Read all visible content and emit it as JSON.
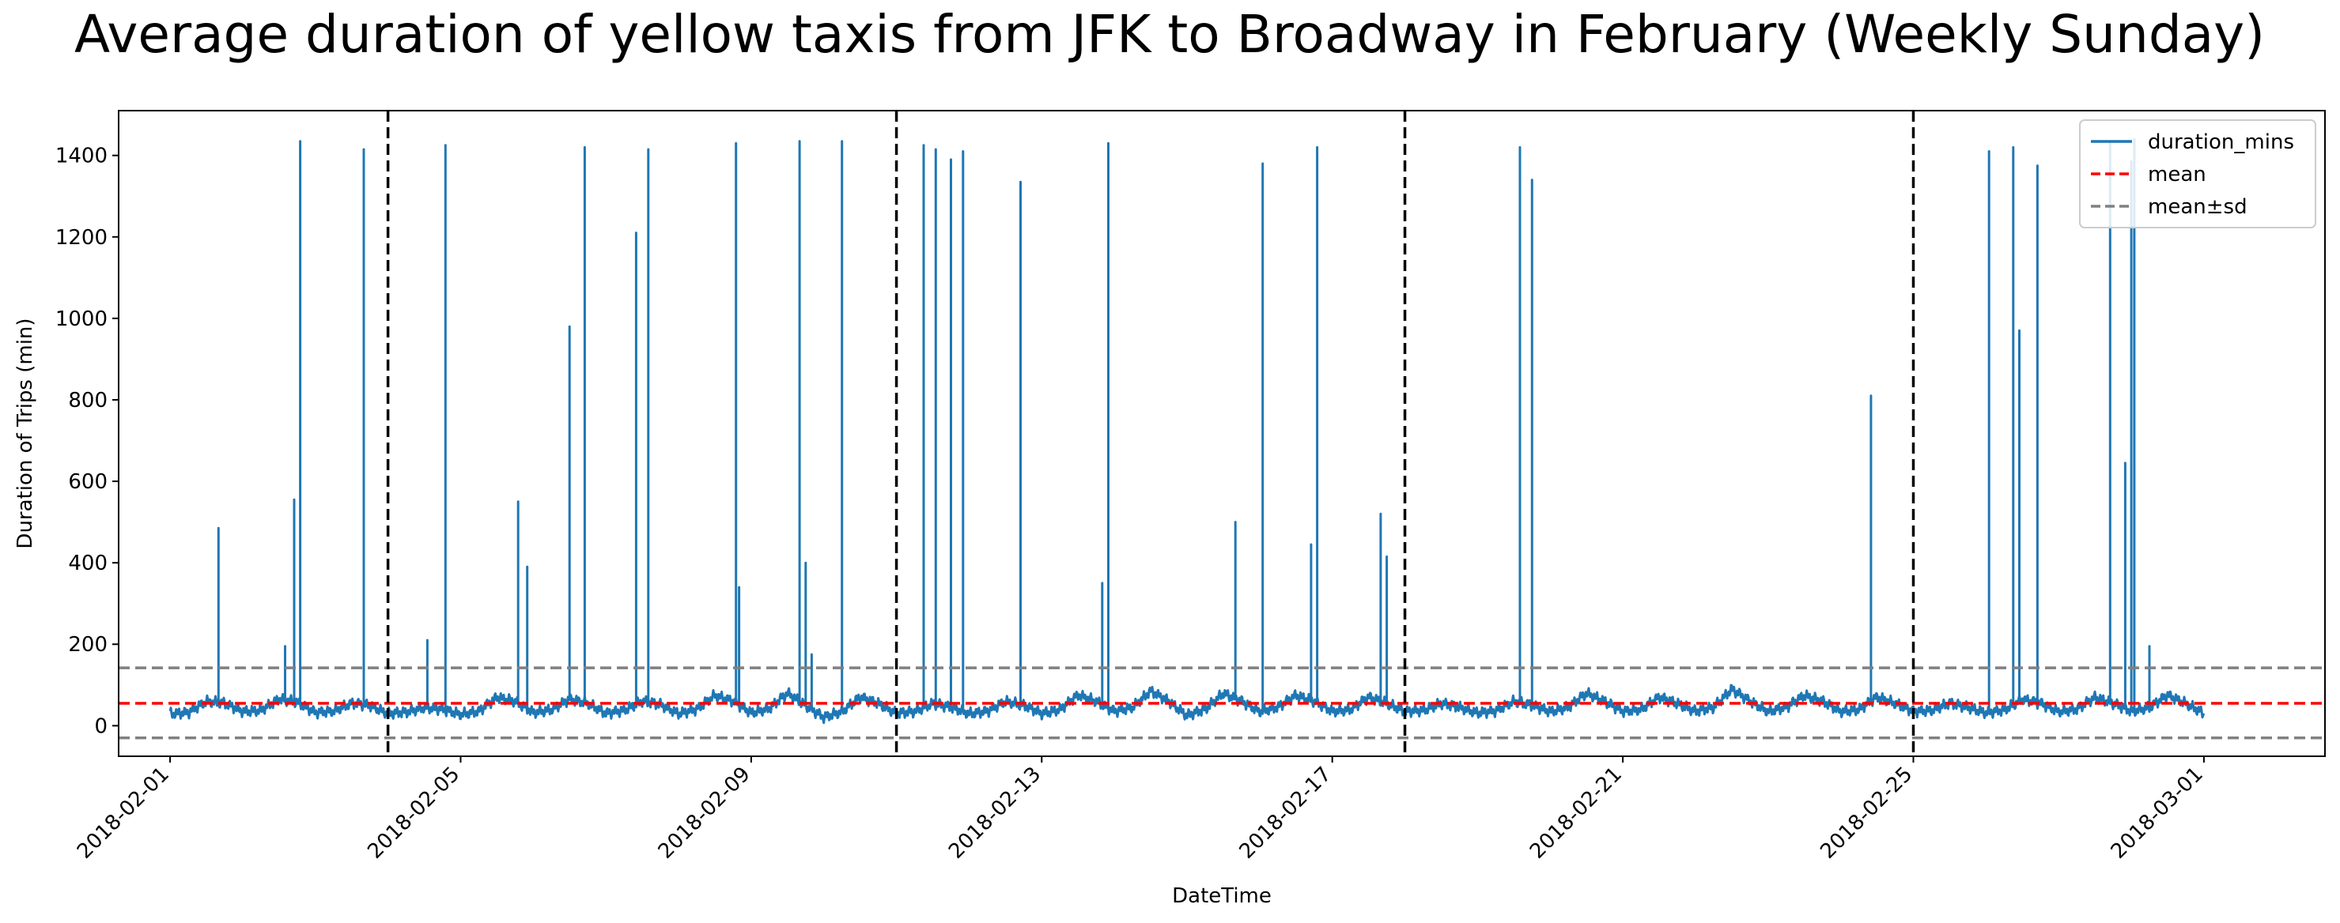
{
  "chart_data": {
    "type": "line",
    "title": "Average duration of yellow taxis from JFK to Broadway in February (Weekly Sunday)",
    "xlabel": "DateTime",
    "ylabel": "Duration of Trips (min)",
    "xlim": [
      "2018-01-31T07:00",
      "2018-03-02T16:00"
    ],
    "ylim": [
      -75,
      1510
    ],
    "xticks": [
      "2018-02-01",
      "2018-02-05",
      "2018-02-09",
      "2018-02-13",
      "2018-02-17",
      "2018-02-21",
      "2018-02-25",
      "2018-03-01"
    ],
    "yticks": [
      0,
      200,
      400,
      600,
      800,
      1000,
      1200,
      1400
    ],
    "grid": false,
    "legend_position": "top-right",
    "legend": [
      "duration_mins",
      "mean",
      "mean±sd"
    ],
    "colors": {
      "series": "#1f77b4",
      "mean": "#ff0000",
      "sd": "#808080",
      "sunday": "#000000"
    },
    "mean": 55,
    "sd_bands": [
      -30,
      142
    ],
    "sunday_lines": [
      "2018-02-04",
      "2018-02-11",
      "2018-02-18",
      "2018-02-25"
    ],
    "series": [
      {
        "name": "duration_mins",
        "baseline": [
          [
            "2018-02-01T00:00",
            30
          ],
          [
            "2018-02-01T06:00",
            32
          ],
          [
            "2018-02-01T12:00",
            60
          ],
          [
            "2018-02-01T18:00",
            55
          ],
          [
            "2018-02-02T00:00",
            35
          ],
          [
            "2018-02-02T06:00",
            38
          ],
          [
            "2018-02-02T12:00",
            65
          ],
          [
            "2018-02-02T18:00",
            58
          ],
          [
            "2018-02-03T00:00",
            32
          ],
          [
            "2018-02-03T06:00",
            36
          ],
          [
            "2018-02-03T12:00",
            55
          ],
          [
            "2018-02-03T18:00",
            50
          ],
          [
            "2018-02-04T00:00",
            30
          ],
          [
            "2018-02-04T06:00",
            33
          ],
          [
            "2018-02-04T12:00",
            45
          ],
          [
            "2018-02-04T18:00",
            40
          ],
          [
            "2018-02-05T00:00",
            28
          ],
          [
            "2018-02-05T06:00",
            35
          ],
          [
            "2018-02-05T12:00",
            70
          ],
          [
            "2018-02-05T18:00",
            60
          ],
          [
            "2018-02-06T00:00",
            32
          ],
          [
            "2018-02-06T06:00",
            40
          ],
          [
            "2018-02-06T12:00",
            65
          ],
          [
            "2018-02-06T18:00",
            55
          ],
          [
            "2018-02-07T00:00",
            30
          ],
          [
            "2018-02-07T06:00",
            38
          ],
          [
            "2018-02-07T12:00",
            60
          ],
          [
            "2018-02-07T18:00",
            52
          ],
          [
            "2018-02-08T00:00",
            30
          ],
          [
            "2018-02-08T06:00",
            40
          ],
          [
            "2018-02-08T12:00",
            75
          ],
          [
            "2018-02-08T18:00",
            60
          ],
          [
            "2018-02-09T00:00",
            32
          ],
          [
            "2018-02-09T06:00",
            42
          ],
          [
            "2018-02-09T12:00",
            80
          ],
          [
            "2018-02-09T18:00",
            50
          ],
          [
            "2018-02-10T00:00",
            20
          ],
          [
            "2018-02-10T06:00",
            35
          ],
          [
            "2018-02-10T12:00",
            70
          ],
          [
            "2018-02-10T18:00",
            55
          ],
          [
            "2018-02-11T00:00",
            30
          ],
          [
            "2018-02-11T06:00",
            35
          ],
          [
            "2018-02-11T12:00",
            55
          ],
          [
            "2018-02-11T18:00",
            45
          ],
          [
            "2018-02-12T00:00",
            30
          ],
          [
            "2018-02-12T06:00",
            35
          ],
          [
            "2018-02-12T12:00",
            60
          ],
          [
            "2018-02-12T18:00",
            50
          ],
          [
            "2018-02-13T00:00",
            30
          ],
          [
            "2018-02-13T06:00",
            40
          ],
          [
            "2018-02-13T12:00",
            75
          ],
          [
            "2018-02-13T18:00",
            60
          ],
          [
            "2018-02-14T00:00",
            35
          ],
          [
            "2018-02-14T06:00",
            45
          ],
          [
            "2018-02-14T12:00",
            85
          ],
          [
            "2018-02-14T18:00",
            60
          ],
          [
            "2018-02-15T00:00",
            25
          ],
          [
            "2018-02-15T06:00",
            40
          ],
          [
            "2018-02-15T12:00",
            80
          ],
          [
            "2018-02-15T18:00",
            60
          ],
          [
            "2018-02-16T00:00",
            35
          ],
          [
            "2018-02-16T06:00",
            45
          ],
          [
            "2018-02-16T12:00",
            75
          ],
          [
            "2018-02-16T18:00",
            60
          ],
          [
            "2018-02-17T00:00",
            35
          ],
          [
            "2018-02-17T06:00",
            40
          ],
          [
            "2018-02-17T12:00",
            70
          ],
          [
            "2018-02-17T18:00",
            55
          ],
          [
            "2018-02-18T00:00",
            35
          ],
          [
            "2018-02-18T06:00",
            38
          ],
          [
            "2018-02-18T12:00",
            55
          ],
          [
            "2018-02-18T18:00",
            45
          ],
          [
            "2018-02-19T00:00",
            32
          ],
          [
            "2018-02-19T06:00",
            36
          ],
          [
            "2018-02-19T12:00",
            60
          ],
          [
            "2018-02-19T18:00",
            50
          ],
          [
            "2018-02-20T00:00",
            35
          ],
          [
            "2018-02-20T06:00",
            45
          ],
          [
            "2018-02-20T12:00",
            80
          ],
          [
            "2018-02-20T18:00",
            60
          ],
          [
            "2018-02-21T00:00",
            35
          ],
          [
            "2018-02-21T06:00",
            40
          ],
          [
            "2018-02-21T12:00",
            70
          ],
          [
            "2018-02-21T18:00",
            55
          ],
          [
            "2018-02-22T00:00",
            35
          ],
          [
            "2018-02-22T06:00",
            45
          ],
          [
            "2018-02-22T12:00",
            90
          ],
          [
            "2018-02-22T18:00",
            60
          ],
          [
            "2018-02-23T00:00",
            35
          ],
          [
            "2018-02-23T06:00",
            45
          ],
          [
            "2018-02-23T12:00",
            75
          ],
          [
            "2018-02-23T18:00",
            60
          ],
          [
            "2018-02-24T00:00",
            35
          ],
          [
            "2018-02-24T06:00",
            40
          ],
          [
            "2018-02-24T12:00",
            70
          ],
          [
            "2018-02-24T18:00",
            55
          ],
          [
            "2018-02-25T00:00",
            35
          ],
          [
            "2018-02-25T06:00",
            38
          ],
          [
            "2018-02-25T12:00",
            55
          ],
          [
            "2018-02-25T18:00",
            45
          ],
          [
            "2018-02-26T00:00",
            32
          ],
          [
            "2018-02-26T06:00",
            38
          ],
          [
            "2018-02-26T12:00",
            65
          ],
          [
            "2018-02-26T18:00",
            55
          ],
          [
            "2018-02-27T00:00",
            35
          ],
          [
            "2018-02-27T06:00",
            40
          ],
          [
            "2018-02-27T12:00",
            70
          ],
          [
            "2018-02-27T18:00",
            55
          ],
          [
            "2018-02-28T00:00",
            35
          ],
          [
            "2018-02-28T06:00",
            45
          ],
          [
            "2018-02-28T12:00",
            75
          ],
          [
            "2018-02-28T18:00",
            55
          ],
          [
            "2018-03-01T00:00",
            30
          ]
        ],
        "spikes": [
          [
            "2018-02-01T16:00",
            485
          ],
          [
            "2018-02-02T14:00",
            195
          ],
          [
            "2018-02-02T17:00",
            555
          ],
          [
            "2018-02-02T19:00",
            1435
          ],
          [
            "2018-02-03T16:00",
            1415
          ],
          [
            "2018-02-04T13:00",
            210
          ],
          [
            "2018-02-04T19:00",
            1425
          ],
          [
            "2018-02-05T19:00",
            550
          ],
          [
            "2018-02-05T22:00",
            390
          ],
          [
            "2018-02-06T12:00",
            980
          ],
          [
            "2018-02-06T17:00",
            1420
          ],
          [
            "2018-02-07T10:00",
            1210
          ],
          [
            "2018-02-07T14:00",
            1415
          ],
          [
            "2018-02-08T19:00",
            1430
          ],
          [
            "2018-02-08T20:00",
            340
          ],
          [
            "2018-02-09T16:00",
            1435
          ],
          [
            "2018-02-09T18:00",
            400
          ],
          [
            "2018-02-09T20:00",
            175
          ],
          [
            "2018-02-10T06:00",
            1435
          ],
          [
            "2018-02-11T09:00",
            1425
          ],
          [
            "2018-02-11T13:00",
            1415
          ],
          [
            "2018-02-11T18:00",
            1390
          ],
          [
            "2018-02-11T22:00",
            1410
          ],
          [
            "2018-02-12T17:00",
            1335
          ],
          [
            "2018-02-13T20:00",
            350
          ],
          [
            "2018-02-13T22:00",
            1430
          ],
          [
            "2018-02-15T16:00",
            500
          ],
          [
            "2018-02-16T01:00",
            1380
          ],
          [
            "2018-02-16T17:00",
            445
          ],
          [
            "2018-02-16T19:00",
            1420
          ],
          [
            "2018-02-17T16:00",
            520
          ],
          [
            "2018-02-17T18:00",
            415
          ],
          [
            "2018-02-19T14:00",
            1420
          ],
          [
            "2018-02-19T18:00",
            1340
          ],
          [
            "2018-02-24T10:00",
            810
          ],
          [
            "2018-02-26T01:00",
            1410
          ],
          [
            "2018-02-26T09:00",
            1420
          ],
          [
            "2018-02-26T11:00",
            970
          ],
          [
            "2018-02-26T17:00",
            1375
          ],
          [
            "2018-02-27T17:00",
            1435
          ],
          [
            "2018-02-27T22:00",
            645
          ],
          [
            "2018-02-28T00:00",
            1385
          ],
          [
            "2018-02-28T01:00",
            1440
          ],
          [
            "2018-02-28T06:00",
            195
          ]
        ]
      }
    ]
  }
}
